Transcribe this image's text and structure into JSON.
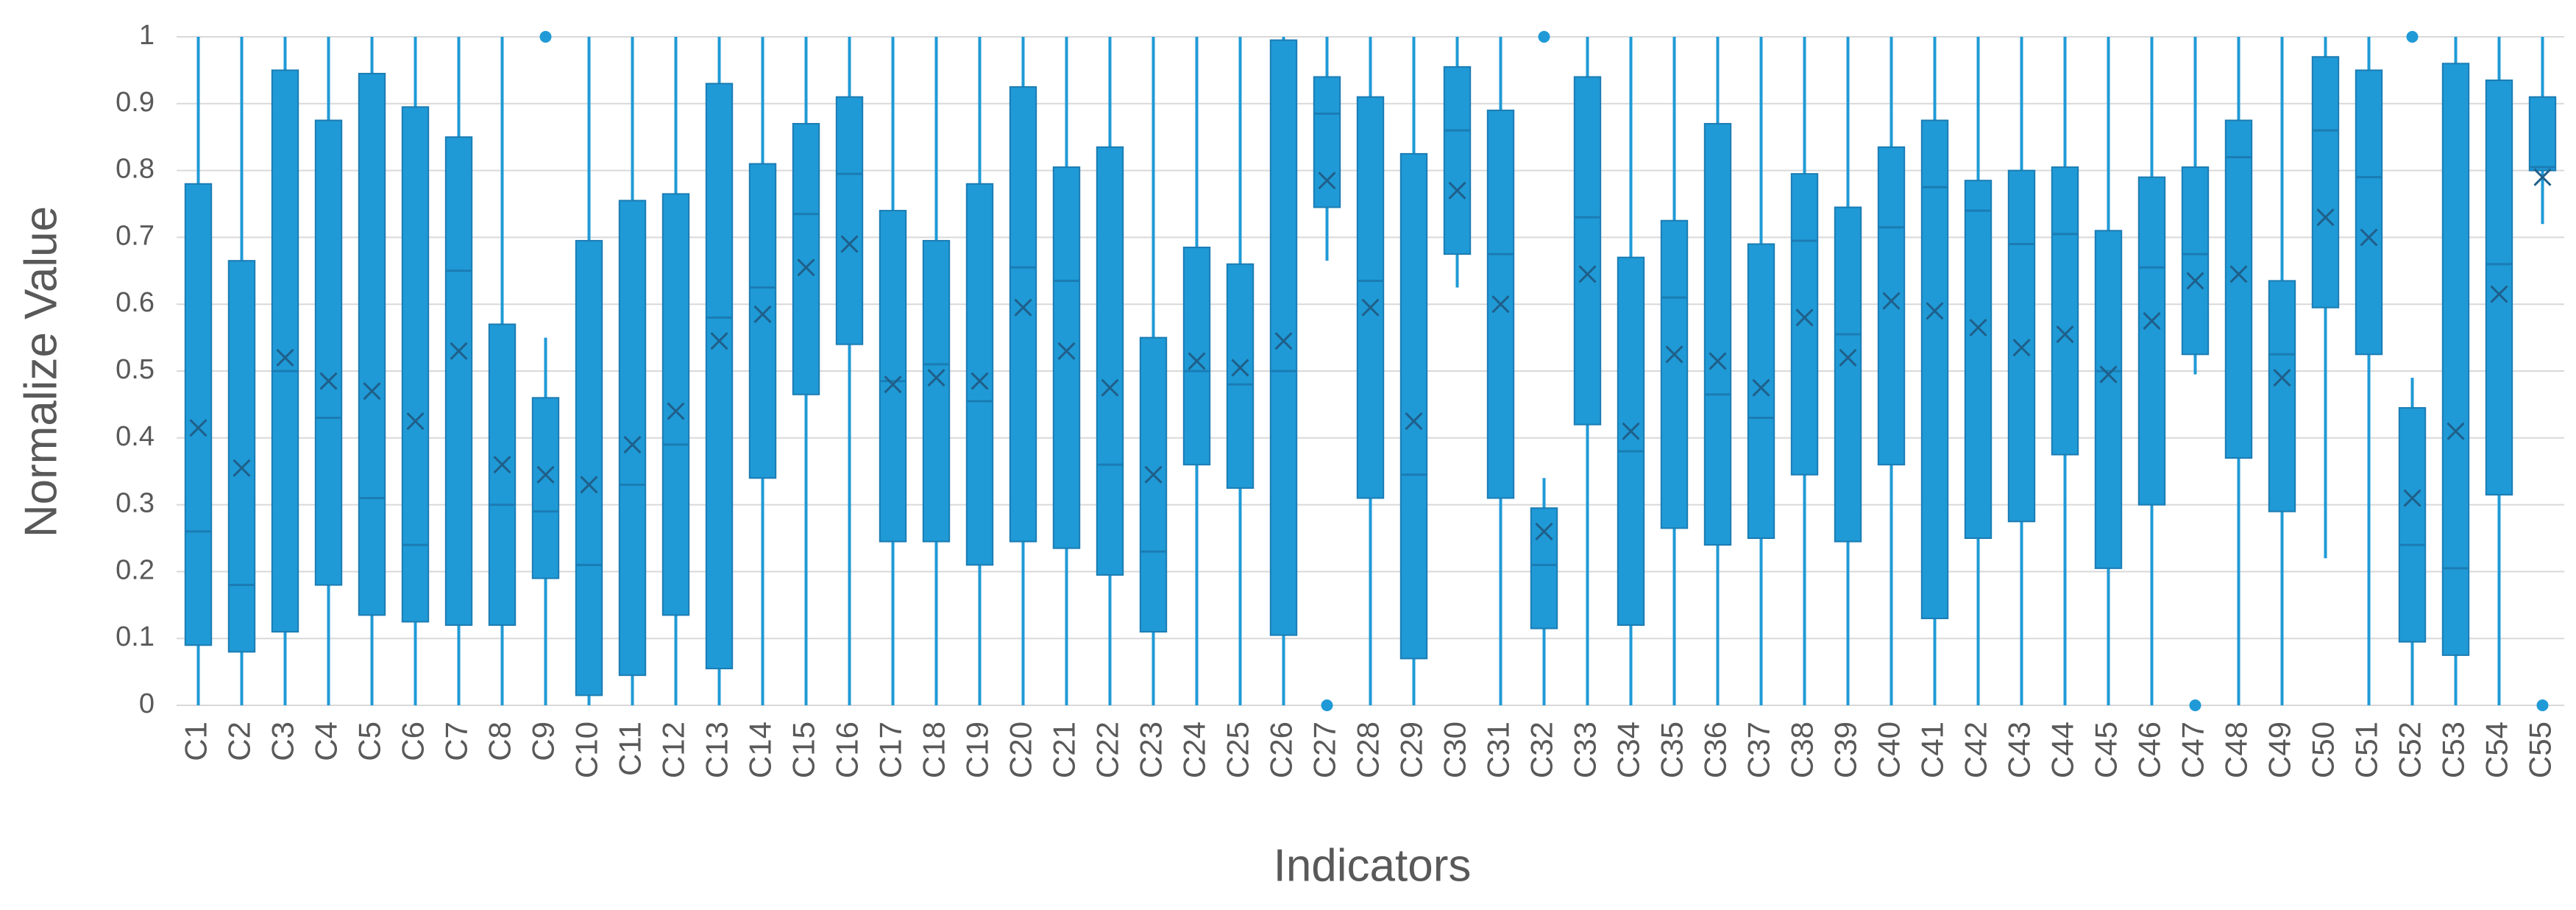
{
  "chart_data": {
    "type": "boxplot",
    "xlabel": "Indicators",
    "ylabel": "Normalize Value",
    "categories": [
      "C1",
      "C2",
      "C3",
      "C4",
      "C5",
      "C6",
      "C7",
      "C8",
      "C9",
      "C10",
      "C11",
      "C12",
      "C13",
      "C14",
      "C15",
      "C16",
      "C17",
      "C18",
      "C19",
      "C20",
      "C21",
      "C22",
      "C23",
      "C24",
      "C25",
      "C26",
      "C27",
      "C28",
      "C29",
      "C30",
      "C31",
      "C32",
      "C33",
      "C34",
      "C35",
      "C36",
      "C37",
      "C38",
      "C39",
      "C40",
      "C41",
      "C42",
      "C43",
      "C44",
      "C45",
      "C46",
      "C47",
      "C48",
      "C49",
      "C50",
      "C51",
      "C52",
      "C53",
      "C54",
      "C55"
    ],
    "color": "#1f9ad6",
    "edge_color": "#1b7cb3",
    "min": [
      0,
      0,
      0,
      0,
      0,
      0,
      0,
      0,
      0,
      0,
      0,
      0,
      0,
      0,
      0,
      0,
      0,
      0,
      0,
      0,
      0,
      0,
      0,
      0,
      0,
      0,
      0.665,
      0,
      0,
      0.625,
      0,
      0,
      0,
      0,
      0,
      0,
      0,
      0,
      0,
      0,
      0,
      0,
      0,
      0,
      0,
      0,
      0.495,
      0,
      0,
      0.22,
      0,
      0,
      0,
      0,
      0.72
    ],
    "q1": [
      0.09,
      0.08,
      0.11,
      0.18,
      0.135,
      0.125,
      0.12,
      0.12,
      0.19,
      0.015,
      0.045,
      0.135,
      0.055,
      0.34,
      0.465,
      0.54,
      0.245,
      0.245,
      0.21,
      0.245,
      0.235,
      0.195,
      0.11,
      0.36,
      0.325,
      0.105,
      0.745,
      0.31,
      0.07,
      0.675,
      0.31,
      0.115,
      0.42,
      0.12,
      0.265,
      0.24,
      0.25,
      0.345,
      0.245,
      0.36,
      0.13,
      0.25,
      0.275,
      0.375,
      0.205,
      0.3,
      0.525,
      0.37,
      0.29,
      0.595,
      0.525,
      0.095,
      0.075,
      0.315,
      0.8
    ],
    "median": [
      0.26,
      0.18,
      0.5,
      0.43,
      0.31,
      0.24,
      0.65,
      0.3,
      0.29,
      0.21,
      0.33,
      0.39,
      0.58,
      0.625,
      0.735,
      0.795,
      0.485,
      0.51,
      0.455,
      0.655,
      0.635,
      0.36,
      0.23,
      0.5,
      0.48,
      0.5,
      0.885,
      0.635,
      0.345,
      0.86,
      0.675,
      0.21,
      0.73,
      0.38,
      0.61,
      0.465,
      0.43,
      0.695,
      0.555,
      0.715,
      0.775,
      0.74,
      0.69,
      0.705,
      0.5,
      0.655,
      0.675,
      0.82,
      0.525,
      0.86,
      0.79,
      0.24,
      0.205,
      0.66,
      0.805
    ],
    "q3": [
      0.78,
      0.665,
      0.95,
      0.875,
      0.945,
      0.895,
      0.85,
      0.57,
      0.46,
      0.695,
      0.755,
      0.765,
      0.93,
      0.81,
      0.87,
      0.91,
      0.74,
      0.695,
      0.78,
      0.925,
      0.805,
      0.835,
      0.55,
      0.685,
      0.66,
      0.995,
      0.94,
      0.91,
      0.825,
      0.955,
      0.89,
      0.295,
      0.94,
      0.67,
      0.725,
      0.87,
      0.69,
      0.795,
      0.745,
      0.835,
      0.875,
      0.785,
      0.8,
      0.805,
      0.71,
      0.79,
      0.805,
      0.875,
      0.635,
      0.97,
      0.95,
      0.445,
      0.96,
      0.935,
      0.91
    ],
    "max": [
      1,
      1,
      1,
      1,
      1,
      1,
      1,
      1,
      0.55,
      1,
      1,
      1,
      1,
      1,
      1,
      1,
      1,
      1,
      1,
      1,
      1,
      1,
      1,
      1,
      1,
      1,
      1,
      1,
      1,
      1,
      1,
      0.34,
      1,
      1,
      1,
      1,
      1,
      1,
      1,
      1,
      1,
      1,
      1,
      1,
      1,
      1,
      1,
      1,
      1,
      1,
      1,
      0.49,
      1,
      1,
      1
    ],
    "mean": [
      0.415,
      0.355,
      0.52,
      0.485,
      0.47,
      0.425,
      0.53,
      0.36,
      0.345,
      0.33,
      0.39,
      0.44,
      0.545,
      0.585,
      0.655,
      0.69,
      0.48,
      0.49,
      0.485,
      0.595,
      0.53,
      0.475,
      0.345,
      0.515,
      0.505,
      0.545,
      0.785,
      0.595,
      0.425,
      0.77,
      0.6,
      0.26,
      0.645,
      0.41,
      0.525,
      0.515,
      0.475,
      0.58,
      0.52,
      0.605,
      0.59,
      0.565,
      0.535,
      0.555,
      0.495,
      0.575,
      0.635,
      0.645,
      0.49,
      0.73,
      0.7,
      0.31,
      0.41,
      0.615,
      0.79
    ],
    "outliers": [
      [],
      [],
      [],
      [],
      [],
      [],
      [],
      [],
      [
        1
      ],
      [],
      [],
      [],
      [],
      [],
      [],
      [],
      [],
      [],
      [],
      [],
      [],
      [],
      [],
      [],
      [],
      [],
      [
        0
      ],
      [],
      [],
      [],
      [],
      [
        1
      ],
      [],
      [],
      [],
      [],
      [],
      [],
      [],
      [],
      [],
      [],
      [],
      [],
      [],
      [],
      [
        0
      ],
      [],
      [],
      [],
      [],
      [
        1
      ],
      [],
      [],
      [
        0
      ]
    ],
    "ylim": [
      0,
      1
    ],
    "yticks": [
      0,
      0.1,
      0.2,
      0.3,
      0.4,
      0.5,
      0.6,
      0.7,
      0.8,
      0.9,
      1
    ],
    "grid": true
  }
}
